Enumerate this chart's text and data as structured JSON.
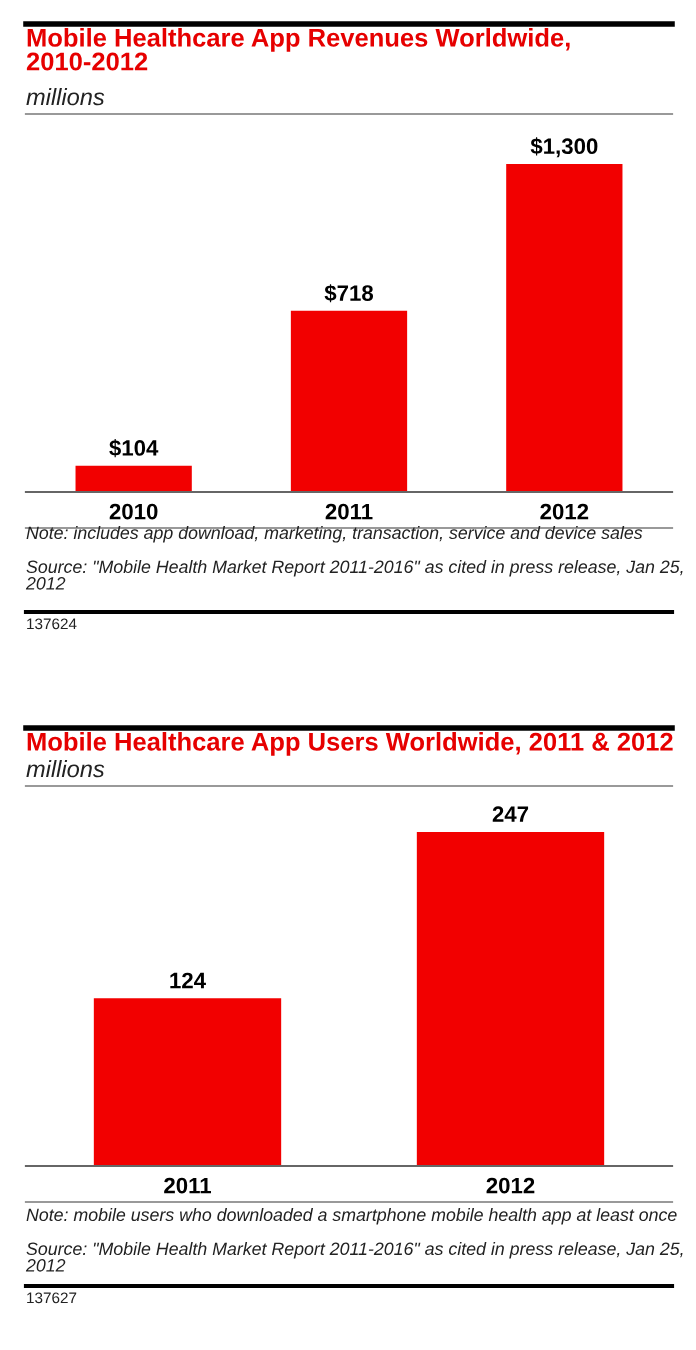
{
  "chart_data": [
    {
      "type": "bar",
      "title": "Mobile Healthcare App Revenues Worldwide, 2010-2012",
      "subtitle": "millions",
      "categories": [
        "2010",
        "2011",
        "2012"
      ],
      "values": [
        104,
        718,
        1300
      ],
      "value_labels": [
        "$104",
        "$718",
        "$1,300"
      ],
      "color": "#f20000",
      "grid": false,
      "legend": false,
      "annotations": [
        "Note: includes app download, marketing, transaction, service and device sales",
        "Source: \"Mobile Health Market Report 2011-2016\" as cited in press release, Jan 25, 2012",
        "137624"
      ]
    },
    {
      "type": "bar",
      "title": "Mobile Healthcare App Users Worldwide, 2011 & 2012",
      "subtitle": "millions",
      "categories": [
        "2011",
        "2012"
      ],
      "values": [
        124,
        247
      ],
      "data_labels": true,
      "color": "#f20000",
      "grid": false,
      "legend": false,
      "annotations": [
        "Note: mobile users who downloaded a smartphone mobile health app at least once",
        "Source: \"Mobile Health Market Report 2011-2016\" as cited in press release, Jan 25, 2012",
        "137627"
      ]
    }
  ]
}
